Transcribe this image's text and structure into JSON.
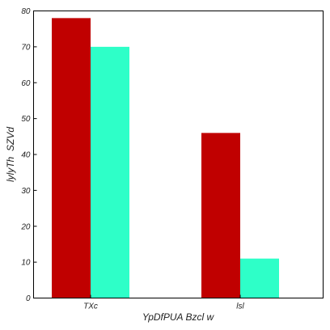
{
  "chart_data": {
    "type": "bar",
    "categories": [
      "TXc",
      "lsl"
    ],
    "series": [
      {
        "values": [
          78,
          46
        ],
        "color": "#c00000"
      },
      {
        "values": [
          70,
          11
        ],
        "color": "#2effc8"
      }
    ],
    "xlabel": "YpDfPUA Bzcl w",
    "ylabel": "lylyTh  SZVd",
    "ylim": [
      0,
      80
    ],
    "yticks": [
      0,
      10,
      20,
      30,
      40,
      50,
      60,
      70,
      80
    ],
    "grid": false,
    "legend": "none"
  }
}
